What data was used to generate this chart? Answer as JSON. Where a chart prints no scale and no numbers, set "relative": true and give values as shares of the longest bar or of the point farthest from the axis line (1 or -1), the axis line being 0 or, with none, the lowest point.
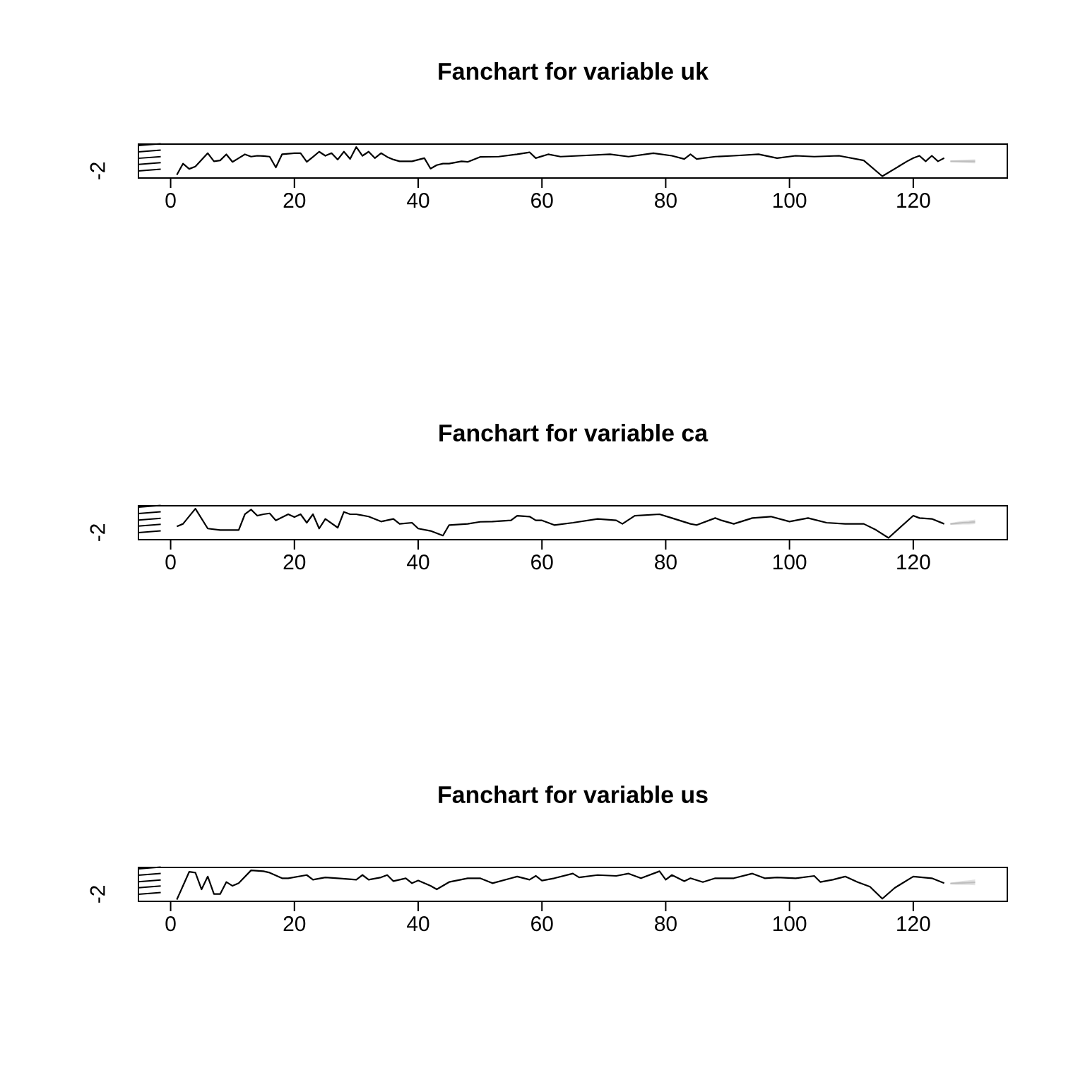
{
  "chart_data": [
    {
      "type": "line",
      "title": "Fanchart for variable uk",
      "relative": true,
      "xlim": [
        -5.2,
        135.2
      ],
      "xticks": [
        0,
        20,
        40,
        60,
        80,
        100,
        120
      ],
      "annotations": [
        "-2"
      ],
      "series": [
        {
          "color": "#000000",
          "x": [
            1,
            2,
            3,
            4,
            6,
            7,
            8,
            9,
            10,
            11,
            12,
            13,
            14,
            15,
            16,
            17,
            18,
            20,
            21,
            22,
            23,
            24,
            25,
            26,
            27,
            28,
            29,
            30,
            31,
            32,
            33,
            34,
            35,
            36,
            37,
            39,
            41,
            42,
            43,
            44,
            45,
            47,
            48,
            50,
            53,
            56,
            58,
            59,
            61,
            63,
            66,
            71,
            74,
            78,
            81,
            83,
            84,
            85,
            88,
            91,
            95,
            98,
            101,
            104,
            108,
            112,
            115,
            119,
            120,
            121,
            122,
            123,
            124,
            125
          ],
          "values": [
            0.05,
            0.43,
            0.25,
            0.33,
            0.79,
            0.51,
            0.54,
            0.75,
            0.49,
            0.62,
            0.75,
            0.67,
            0.7,
            0.69,
            0.67,
            0.3,
            0.75,
            0.79,
            0.79,
            0.49,
            0.66,
            0.84,
            0.7,
            0.79,
            0.57,
            0.84,
            0.59,
            1,
            0.7,
            0.84,
            0.62,
            0.79,
            0.66,
            0.57,
            0.51,
            0.51,
            0.62,
            0.26,
            0.38,
            0.43,
            0.43,
            0.51,
            0.49,
            0.66,
            0.67,
            0.75,
            0.82,
            0.62,
            0.75,
            0.67,
            0.7,
            0.75,
            0.67,
            0.79,
            0.7,
            0.59,
            0.75,
            0.59,
            0.67,
            0.7,
            0.75,
            0.62,
            0.7,
            0.67,
            0.7,
            0.54,
            0,
            0.51,
            0.62,
            0.7,
            0.51,
            0.7,
            0.51,
            0.62
          ]
        },
        {
          "color": "#bebebe",
          "x": [
            126,
            127,
            128,
            129,
            130
          ],
          "values": [
            0.51,
            0.51,
            0.51,
            0.51,
            0.51
          ],
          "lower": [
            0.49,
            0.47,
            0.46,
            0.45,
            0.44
          ],
          "upper": [
            0.53,
            0.55,
            0.56,
            0.57,
            0.58
          ]
        }
      ]
    },
    {
      "type": "line",
      "title": "Fanchart for variable ca",
      "relative": true,
      "xlim": [
        -5.2,
        135.2
      ],
      "xticks": [
        0,
        20,
        40,
        60,
        80,
        100,
        120
      ],
      "annotations": [
        "-2"
      ],
      "series": [
        {
          "color": "#000000",
          "x": [
            1,
            2,
            4,
            6,
            8,
            11,
            12,
            13,
            14,
            15,
            16,
            17,
            19,
            20,
            21,
            22,
            23,
            24,
            25,
            27,
            28,
            29,
            30,
            32,
            34,
            36,
            37,
            39,
            40,
            42,
            44,
            45,
            48,
            50,
            52,
            55,
            56,
            58,
            59,
            60,
            62,
            65,
            69,
            72,
            73,
            75,
            79,
            81,
            84,
            85,
            88,
            89,
            91,
            94,
            97,
            100,
            103,
            106,
            109,
            112,
            114,
            116,
            120,
            121,
            123,
            125
          ],
          "values": [
            0.39,
            0.48,
            1,
            0.32,
            0.27,
            0.27,
            0.81,
            0.97,
            0.76,
            0.81,
            0.84,
            0.6,
            0.81,
            0.71,
            0.81,
            0.52,
            0.81,
            0.32,
            0.65,
            0.35,
            0.89,
            0.81,
            0.81,
            0.73,
            0.56,
            0.65,
            0.48,
            0.52,
            0.32,
            0.24,
            0.08,
            0.44,
            0.48,
            0.55,
            0.56,
            0.6,
            0.76,
            0.73,
            0.6,
            0.6,
            0.44,
            0.52,
            0.65,
            0.6,
            0.48,
            0.76,
            0.81,
            0.68,
            0.48,
            0.44,
            0.68,
            0.6,
            0.48,
            0.68,
            0.73,
            0.56,
            0.68,
            0.52,
            0.48,
            0.48,
            0.27,
            0,
            0.76,
            0.68,
            0.65,
            0.48
          ]
        },
        {
          "color": "#bebebe",
          "x": [
            126,
            127,
            128,
            129,
            130
          ],
          "values": [
            0.48,
            0.5,
            0.52,
            0.53,
            0.55
          ],
          "lower": [
            0.45,
            0.45,
            0.46,
            0.46,
            0.47
          ],
          "upper": [
            0.51,
            0.55,
            0.58,
            0.6,
            0.63
          ]
        }
      ]
    },
    {
      "type": "line",
      "title": "Fanchart for variable us",
      "relative": true,
      "xlim": [
        -5.2,
        135.2
      ],
      "xticks": [
        0,
        20,
        40,
        60,
        80,
        100,
        120
      ],
      "annotations": [
        "-2"
      ],
      "series": [
        {
          "color": "#000000",
          "x": [
            1,
            2,
            3,
            4,
            5,
            6,
            7,
            8,
            9,
            10,
            11,
            13,
            15,
            16,
            18,
            19,
            22,
            23,
            25,
            27,
            30,
            31,
            32,
            34,
            35,
            36,
            38,
            39,
            40,
            42,
            43,
            45,
            48,
            50,
            52,
            55,
            56,
            58,
            59,
            60,
            62,
            65,
            66,
            69,
            72,
            74,
            76,
            79,
            80,
            81,
            83,
            84,
            86,
            88,
            91,
            94,
            96,
            98,
            101,
            104,
            105,
            107,
            109,
            111,
            113,
            115,
            117,
            120,
            123,
            125
          ],
          "values": [
            0,
            0.47,
            0.95,
            0.92,
            0.35,
            0.79,
            0.19,
            0.19,
            0.6,
            0.47,
            0.56,
            1,
            0.97,
            0.92,
            0.73,
            0.73,
            0.84,
            0.68,
            0.76,
            0.73,
            0.68,
            0.84,
            0.68,
            0.76,
            0.84,
            0.63,
            0.73,
            0.56,
            0.65,
            0.47,
            0.35,
            0.6,
            0.73,
            0.73,
            0.56,
            0.73,
            0.79,
            0.68,
            0.81,
            0.65,
            0.73,
            0.89,
            0.76,
            0.84,
            0.81,
            0.89,
            0.73,
            0.97,
            0.68,
            0.84,
            0.63,
            0.73,
            0.6,
            0.73,
            0.73,
            0.89,
            0.73,
            0.76,
            0.73,
            0.81,
            0.6,
            0.68,
            0.79,
            0.6,
            0.44,
            0.03,
            0.4,
            0.79,
            0.73,
            0.56
          ]
        },
        {
          "color": "#bebebe",
          "x": [
            126,
            127,
            128,
            129,
            130
          ],
          "values": [
            0.55,
            0.56,
            0.57,
            0.58,
            0.59
          ],
          "lower": [
            0.52,
            0.51,
            0.5,
            0.5,
            0.49
          ],
          "upper": [
            0.58,
            0.61,
            0.64,
            0.66,
            0.69
          ]
        }
      ]
    }
  ]
}
